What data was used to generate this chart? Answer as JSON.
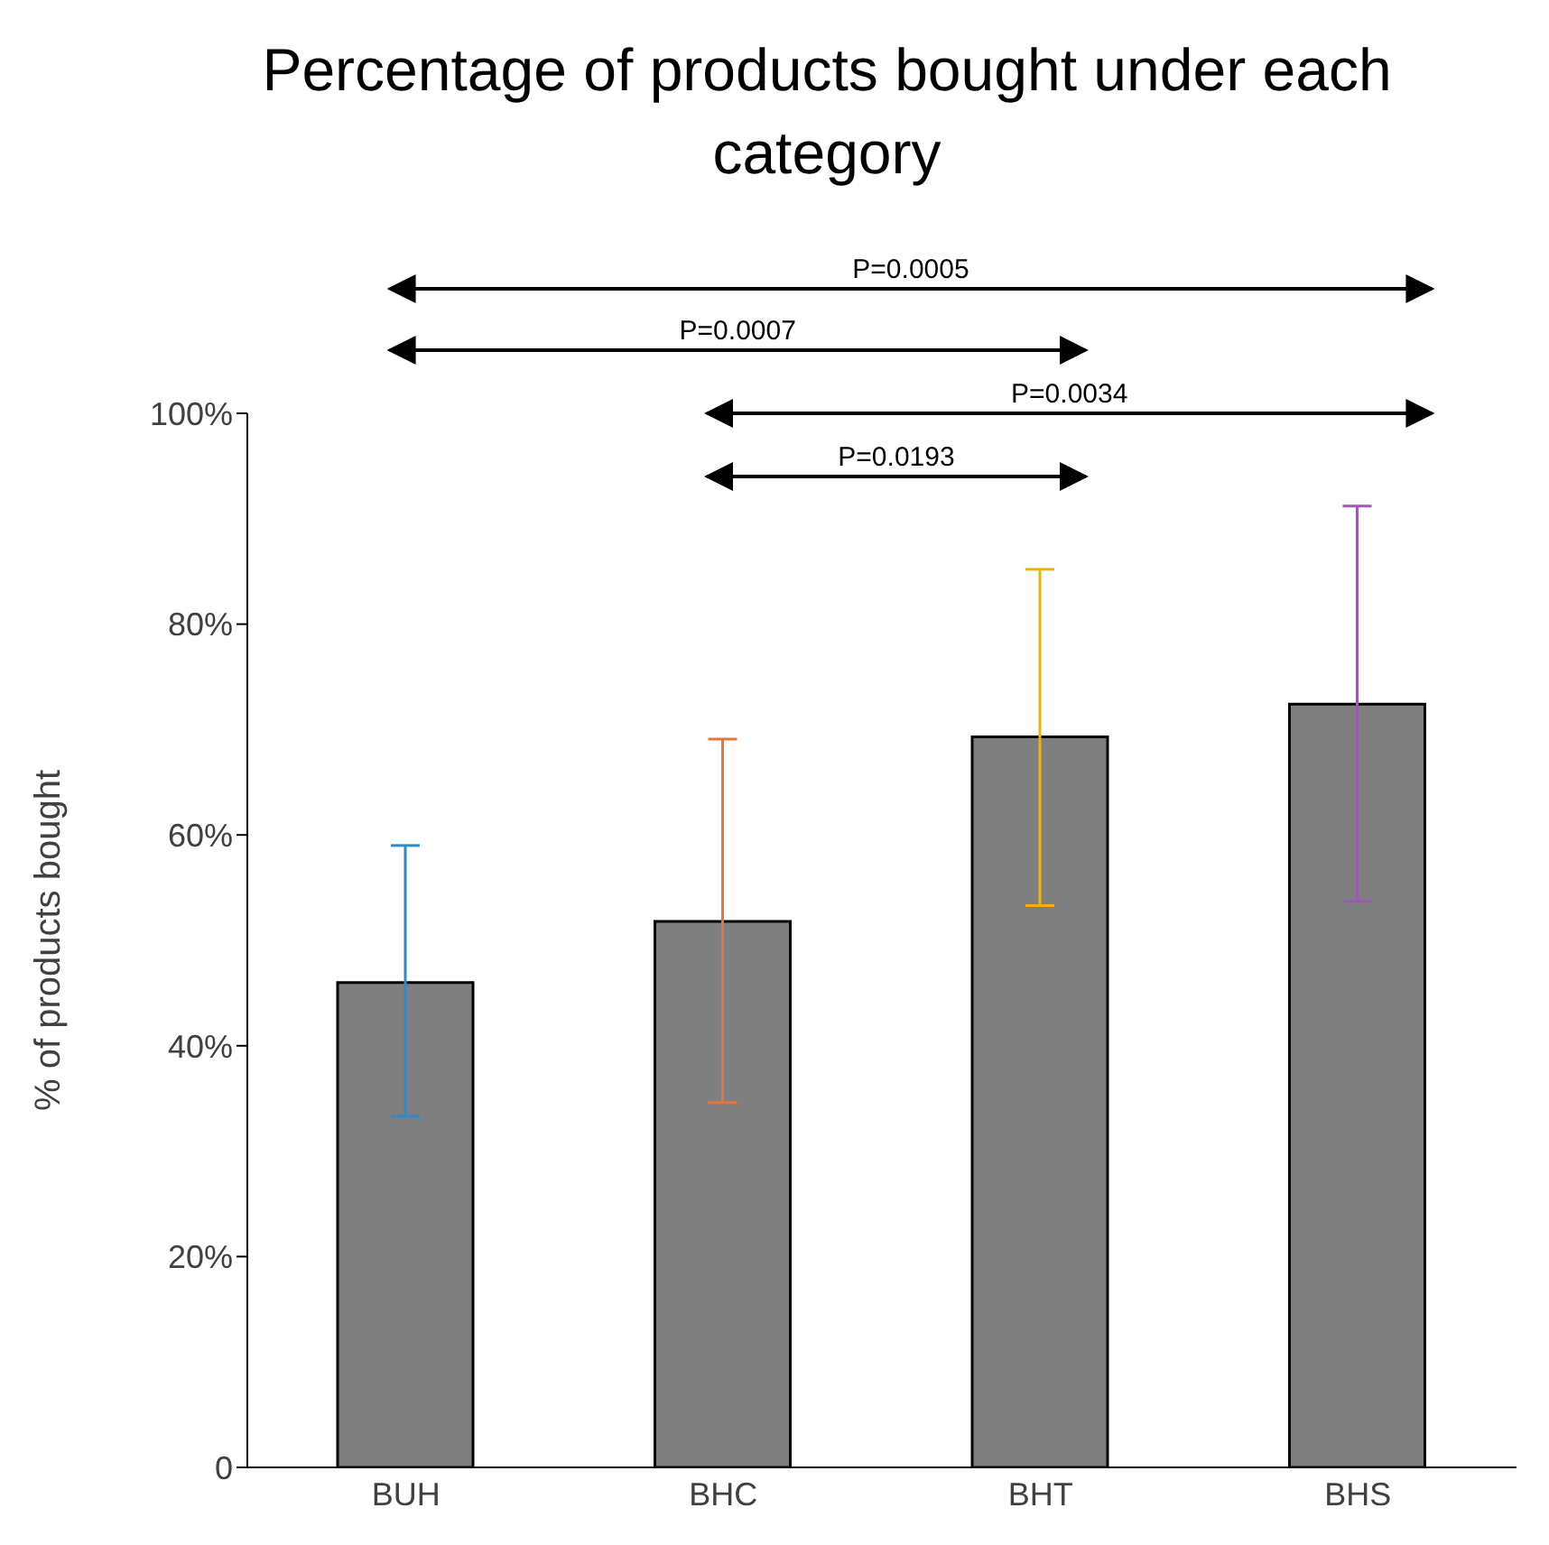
{
  "chart_data": {
    "type": "bar",
    "title": "Percentage of products bought under each category",
    "ylabel": "% of products bought",
    "categories": [
      "BUH",
      "BHC",
      "BHT",
      "BHS"
    ],
    "values": [
      46.0,
      51.8,
      69.3,
      72.4
    ],
    "errors": [
      [
        33.3,
        59.0
      ],
      [
        34.6,
        69.1
      ],
      [
        53.3,
        85.2
      ],
      [
        53.7,
        91.2
      ]
    ],
    "color": "#7f7f7f",
    "ylim": [
      0,
      100
    ],
    "yticks": [
      0,
      {
        "value": 20,
        "label": "20%"
      },
      {
        "value": 40,
        "label": "40%"
      },
      {
        "value": 60,
        "label": "60%"
      },
      {
        "value": 80,
        "label": "80%"
      },
      {
        "value": 100,
        "label": "100%"
      }
    ],
    "grid": false,
    "legend": false,
    "annotations": [
      "P=0.0005",
      "P=0.0007",
      "P=0.0034",
      "P=0.0193"
    ]
  }
}
